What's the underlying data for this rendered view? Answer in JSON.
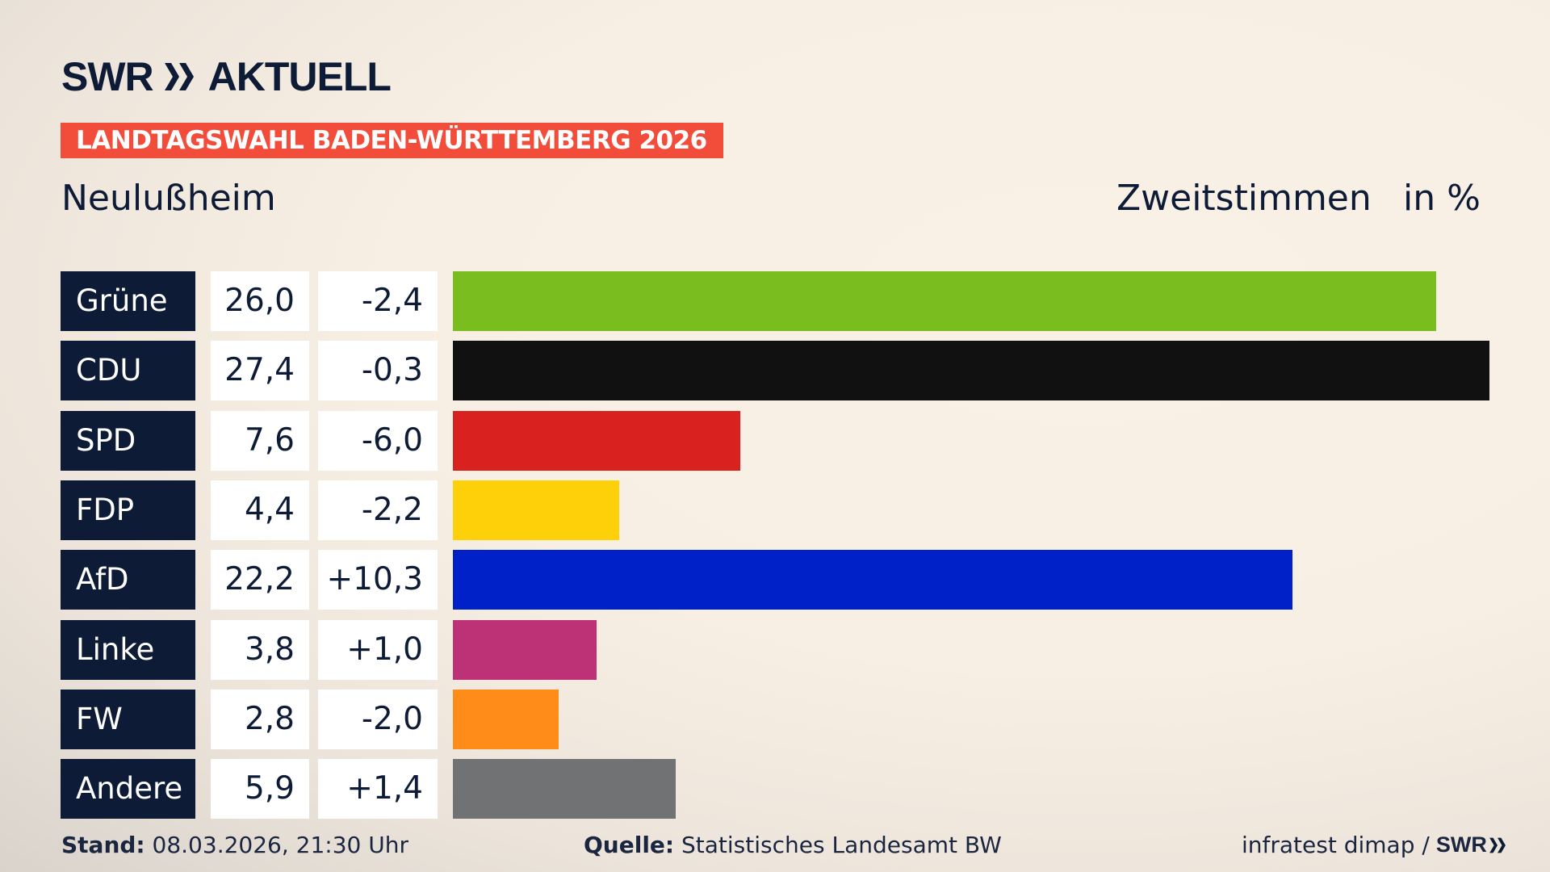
{
  "header": {
    "logo_text": "SWR",
    "logo_suffix": "AKTUELL",
    "banner": "LANDTAGSWAHL BADEN-WÜRTTEMBERG 2026",
    "place": "Neulußheim",
    "metric": "Zweitstimmen",
    "unit": "in %"
  },
  "chart_data": {
    "type": "bar",
    "orientation": "horizontal",
    "xlim": [
      0,
      27.4
    ],
    "categories": [
      "Grüne",
      "CDU",
      "SPD",
      "FDP",
      "AfD",
      "Linke",
      "FW",
      "Andere"
    ],
    "values": [
      26.0,
      27.4,
      7.6,
      4.4,
      22.2,
      3.8,
      2.8,
      5.9
    ],
    "value_labels": [
      "26,0",
      "27,4",
      "7,6",
      "4,4",
      "22,2",
      "3,8",
      "2,8",
      "5,9"
    ],
    "diff_labels": [
      "-2,4",
      "-0,3",
      "-6,0",
      "-2,2",
      "+10,3",
      "+1,0",
      "-2,0",
      "+1,4"
    ],
    "colors": [
      "#7abd1f",
      "#111111",
      "#d9211f",
      "#fdd00a",
      "#0021c8",
      "#bd3176",
      "#ff8c18",
      "#717273"
    ]
  },
  "footer": {
    "stand_label": "Stand:",
    "stand_value": "08.03.2026, 21:30 Uhr",
    "source_label": "Quelle:",
    "source_value": "Statistisches Landesamt BW",
    "credit": "infratest dimap /",
    "credit_logo": "SWR"
  }
}
